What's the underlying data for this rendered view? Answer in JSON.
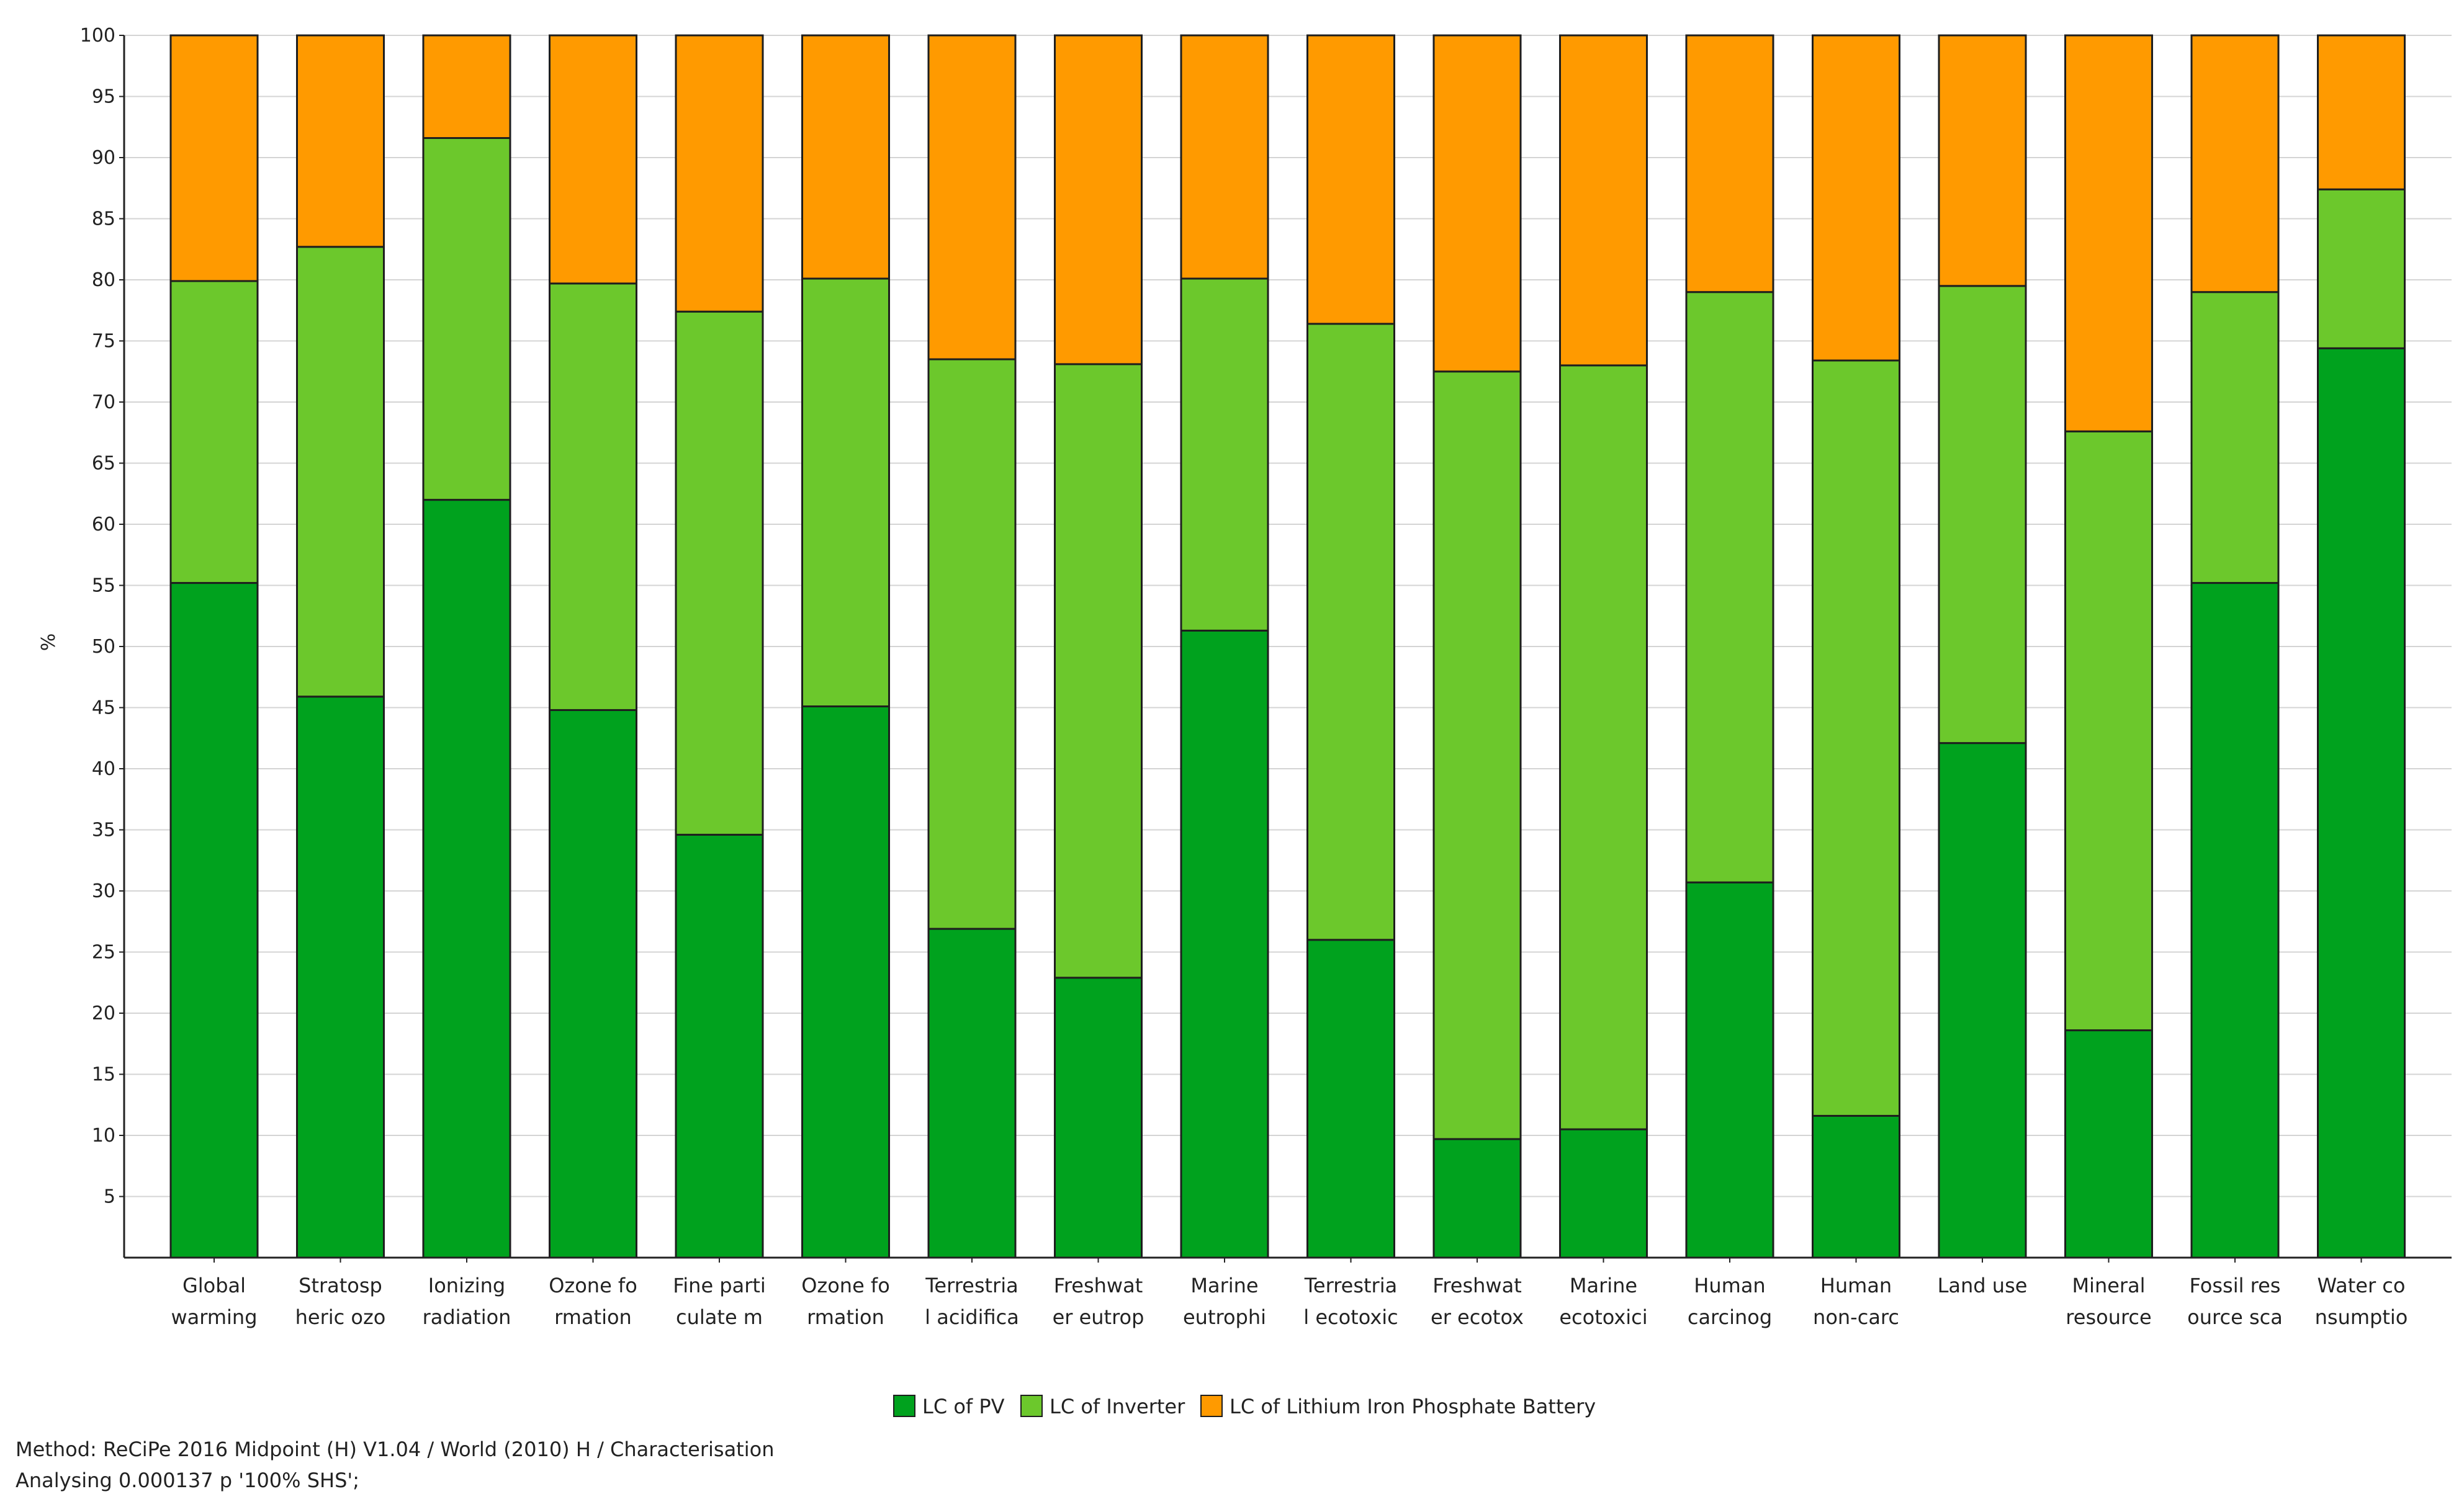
{
  "chart_data": {
    "type": "bar",
    "stacked": true,
    "normalized_percent": true,
    "ylabel": "%",
    "ylim": [
      0,
      100
    ],
    "yticks": [
      5,
      10,
      15,
      20,
      25,
      30,
      35,
      40,
      45,
      50,
      55,
      60,
      65,
      70,
      75,
      80,
      85,
      90,
      95,
      100
    ],
    "grid": true,
    "categories": [
      [
        "Global",
        "warming"
      ],
      [
        "Stratosp",
        "heric ozo"
      ],
      [
        "Ionizing",
        "radiation"
      ],
      [
        "Ozone fo",
        "rmation"
      ],
      [
        "Fine parti",
        "culate m"
      ],
      [
        "Ozone fo",
        "rmation"
      ],
      [
        "Terrestria",
        "l acidifica"
      ],
      [
        "Freshwat",
        "er eutrop"
      ],
      [
        "Marine",
        "eutrophi"
      ],
      [
        "Terrestria",
        "l ecotoxic"
      ],
      [
        "Freshwat",
        "er ecotox"
      ],
      [
        "Marine",
        "ecotoxici"
      ],
      [
        "Human",
        "carcinog"
      ],
      [
        "Human",
        "non-carc"
      ],
      [
        "Land use",
        ""
      ],
      [
        "Mineral",
        "resource"
      ],
      [
        "Fossil res",
        "ource sca"
      ],
      [
        "Water co",
        "nsumptio"
      ]
    ],
    "series": [
      {
        "name": "LC of PV",
        "color": "#00a21e",
        "values": [
          55.2,
          45.9,
          62.0,
          44.8,
          34.6,
          45.1,
          26.9,
          22.9,
          51.3,
          26.0,
          9.7,
          10.5,
          30.7,
          11.6,
          42.1,
          18.6,
          55.2,
          74.4
        ]
      },
      {
        "name": "LC of Inverter",
        "color": "#6cc82c",
        "values": [
          24.7,
          36.8,
          29.6,
          34.9,
          42.8,
          35.0,
          46.6,
          50.2,
          28.8,
          50.4,
          62.8,
          62.5,
          48.3,
          61.8,
          37.4,
          49.0,
          23.8,
          13.0
        ]
      },
      {
        "name": "LC of Lithium Iron Phosphate Battery",
        "color": "#ff9a00",
        "values": [
          20.1,
          17.3,
          8.4,
          20.3,
          22.6,
          19.9,
          26.5,
          26.9,
          19.9,
          23.6,
          27.5,
          27.0,
          21.0,
          26.6,
          20.5,
          32.4,
          21.0,
          12.6
        ]
      }
    ]
  },
  "footer": {
    "method": "Method: ReCiPe 2016 Midpoint (H) V1.04 / World (2010) H / Characterisation",
    "analysing": "Analysing 0.000137 p '100% SHS';"
  }
}
